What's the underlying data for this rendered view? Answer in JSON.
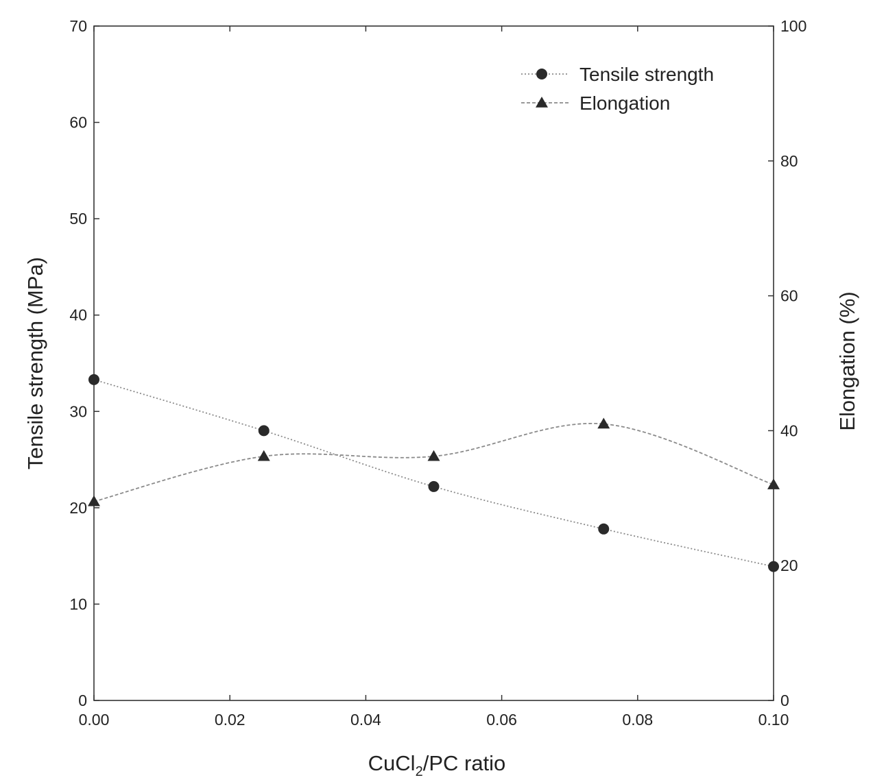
{
  "chart_data": {
    "type": "line",
    "title": "",
    "x": [
      0.0,
      0.025,
      0.05,
      0.075,
      0.1
    ],
    "xlabel": {
      "main": "CuCl",
      "sub": "2",
      "rest": "/PC ratio"
    },
    "xlim": [
      0.0,
      0.1
    ],
    "xticks": [
      0.0,
      0.02,
      0.04,
      0.06,
      0.08,
      0.1
    ],
    "xtick_labels": [
      "0.00",
      "0.02",
      "0.04",
      "0.06",
      "0.08",
      "0.10"
    ],
    "ylabel_left": "Tensile strength (MPa)",
    "ylim_left": [
      0,
      70
    ],
    "yticks_left": [
      "0",
      "10",
      "20",
      "30",
      "40",
      "50",
      "60",
      "70"
    ],
    "ylabel_right": "Elongation (%)",
    "ylim_right": [
      0,
      100
    ],
    "yticks_right": [
      "0",
      "20",
      "40",
      "60",
      "80",
      "100"
    ],
    "grid": false,
    "legend_position": "top-right",
    "series": [
      {
        "name": "Tensile strength",
        "marker": "circle",
        "axis": "left",
        "values": [
          33.3,
          28.0,
          22.2,
          17.8,
          13.9
        ]
      },
      {
        "name": "Elongation",
        "marker": "triangle",
        "axis": "right",
        "values": [
          29.5,
          36.2,
          36.2,
          41.0,
          32.0
        ]
      }
    ],
    "colors": {
      "line": "#8a8a8a",
      "marker": "#2a2a2a",
      "axis": "#333333"
    }
  }
}
